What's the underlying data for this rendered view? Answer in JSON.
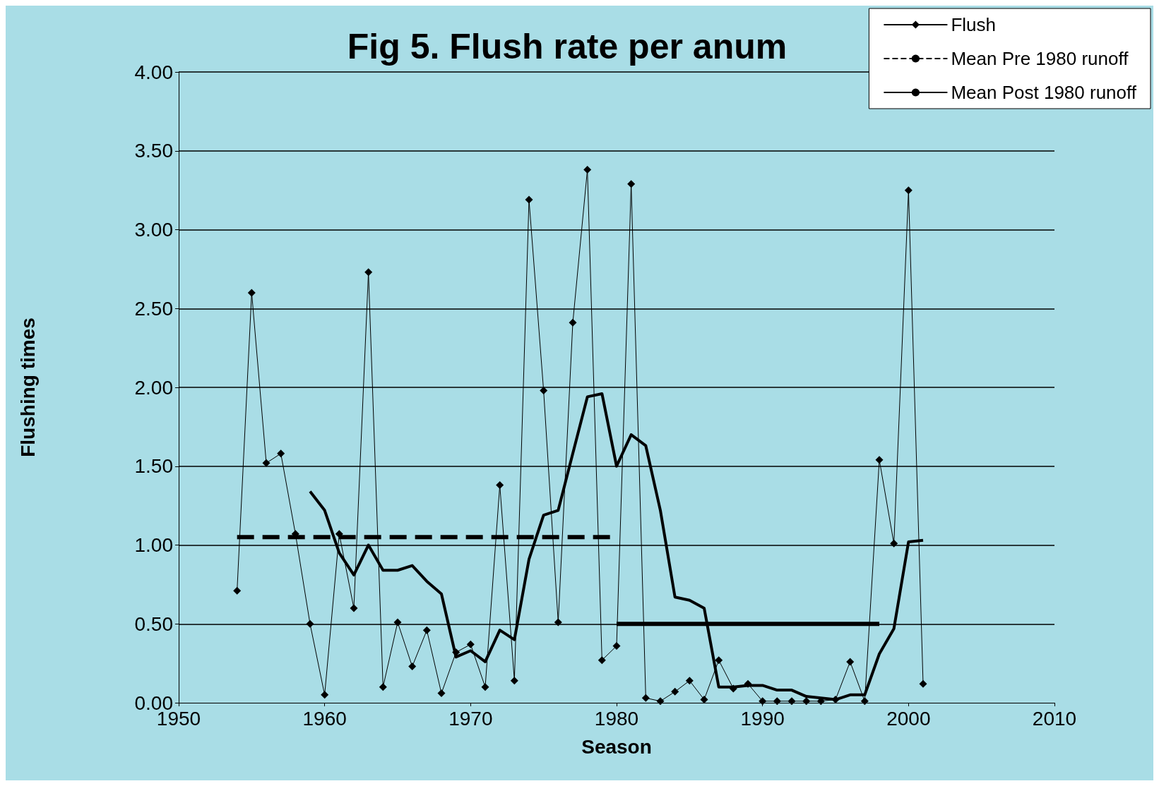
{
  "chart_data": {
    "type": "line",
    "title": "Fig 5. Flush rate per anum",
    "xlabel": "Season",
    "ylabel": "Flushing times",
    "xlim": [
      1950,
      2010
    ],
    "xticks": [
      1950,
      1960,
      1970,
      1980,
      1990,
      2000,
      2010
    ],
    "ylim": [
      0,
      4
    ],
    "yticks": [
      {
        "value": 0,
        "label": "0.00"
      },
      {
        "value": 0.5,
        "label": "0.50"
      },
      {
        "value": 1,
        "label": "1.00"
      },
      {
        "value": 1.5,
        "label": "1.50"
      },
      {
        "value": 2,
        "label": "2.00"
      },
      {
        "value": 2.5,
        "label": "2.50"
      },
      {
        "value": 3,
        "label": "3.00"
      },
      {
        "value": 3.5,
        "label": "3.50"
      },
      {
        "value": 4,
        "label": "4.00"
      }
    ],
    "grid": "y",
    "legend": "top right",
    "series": [
      {
        "name": "Flush",
        "color": "#000000",
        "marker": "diamond",
        "line_style": "solid",
        "x": [
          1954,
          1955,
          1956,
          1957,
          1958,
          1959,
          1960,
          1961,
          1962,
          1963,
          1964,
          1965,
          1966,
          1967,
          1968,
          1969,
          1970,
          1971,
          1972,
          1973,
          1974,
          1975,
          1976,
          1977,
          1978,
          1979,
          1980,
          1981,
          1982,
          1983,
          1984,
          1985,
          1986,
          1987,
          1988,
          1989,
          1990,
          1991,
          1992,
          1993,
          1994,
          1995,
          1996,
          1997,
          1998,
          1999,
          2000,
          2001
        ],
        "values": [
          0.71,
          2.6,
          1.52,
          1.58,
          1.07,
          0.5,
          0.05,
          1.07,
          0.6,
          2.73,
          0.1,
          0.51,
          0.23,
          0.46,
          0.06,
          0.32,
          0.37,
          0.1,
          1.38,
          0.14,
          3.19,
          1.98,
          0.51,
          2.41,
          3.38,
          0.27,
          0.36,
          3.29,
          0.03,
          0.01,
          0.07,
          0.14,
          0.02,
          0.27,
          0.09,
          0.12,
          0.01,
          0.01,
          0.01,
          0.01,
          0.01,
          0.02,
          0.26,
          0.01,
          1.54,
          1.01,
          3.25,
          0.12
        ]
      },
      {
        "name": "Mean Pre 1980 runoff",
        "color": "#000000",
        "marker": "none",
        "line_style": "dashed",
        "x": [
          1954,
          1980
        ],
        "values": [
          1.05,
          1.05
        ]
      },
      {
        "name": "Mean Post 1980 runoff",
        "color": "#000000",
        "marker": "none",
        "line_style": "solid",
        "x": [
          1980,
          1998
        ],
        "values": [
          0.5,
          0.5
        ]
      },
      {
        "color": "#000000",
        "marker": "none",
        "line_style": "solid",
        "x": [
          1959,
          1960,
          1961,
          1962,
          1963,
          1964,
          1965,
          1966,
          1967,
          1968,
          1969,
          1970,
          1971,
          1972,
          1973,
          1974,
          1975,
          1976,
          1977,
          1978,
          1979,
          1980,
          1981,
          1982,
          1983,
          1984,
          1985,
          1986,
          1987,
          1988,
          1989,
          1990,
          1991,
          1992,
          1993,
          1994,
          1995,
          1996,
          1997,
          1998,
          1999,
          2000,
          2001
        ],
        "values": [
          1.34,
          1.22,
          0.95,
          0.81,
          1.0,
          0.84,
          0.84,
          0.87,
          0.77,
          0.69,
          0.29,
          0.33,
          0.26,
          0.46,
          0.4,
          0.91,
          1.19,
          1.22,
          1.58,
          1.94,
          1.96,
          1.5,
          1.7,
          1.63,
          1.22,
          0.67,
          0.65,
          0.6,
          0.1,
          0.1,
          0.11,
          0.11,
          0.08,
          0.08,
          0.04,
          0.03,
          0.02,
          0.05,
          0.05,
          0.31,
          0.47,
          1.02,
          1.03
        ]
      }
    ]
  }
}
